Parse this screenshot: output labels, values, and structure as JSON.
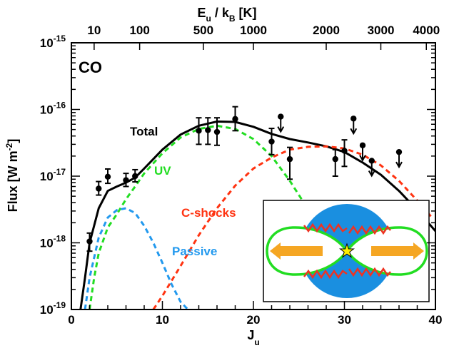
{
  "chart_data": {
    "type": "line",
    "panel_label": "CO",
    "xlabel": "J",
    "xlabel_sub": "u",
    "x_ticks": [
      "0",
      "10",
      "20",
      "30",
      "40"
    ],
    "xlim": [
      0,
      40
    ],
    "ylabel_main": "Flux [W m",
    "ylabel_sup": "-2",
    "ylabel_end": "]",
    "y_log": true,
    "ylim": [
      1e-19,
      1e-15
    ],
    "y_ticks": [
      {
        "value": 1e-19,
        "base": "10",
        "exp": "-19"
      },
      {
        "value": 1e-18,
        "base": "10",
        "exp": "-18"
      },
      {
        "value": 1e-17,
        "base": "10",
        "exp": "-17"
      },
      {
        "value": 1e-16,
        "base": "10",
        "exp": "-16"
      },
      {
        "value": 1e-15,
        "base": "10",
        "exp": "-15"
      }
    ],
    "top_axis": {
      "label_E": "E",
      "label_E_sub": "u",
      "label_mid": " / k",
      "label_k_sub": "B",
      "label_end": " [K]",
      "ticks": [
        {
          "label": "10",
          "J": 2.5
        },
        {
          "label": "100",
          "J": 7.5
        },
        {
          "label": "500",
          "J": 14.5
        },
        {
          "label": "1000",
          "J": 20
        },
        {
          "label": "2000",
          "J": 28
        },
        {
          "label": "3000",
          "J": 34
        },
        {
          "label": "4000",
          "J": 39
        }
      ]
    },
    "series": [
      {
        "name": "Total",
        "color": "#000000",
        "dashed": false,
        "points": [
          [
            1,
            1e-19
          ],
          [
            1.5,
            3e-19
          ],
          [
            2,
            1e-18
          ],
          [
            3,
            3.3e-18
          ],
          [
            4,
            6e-18
          ],
          [
            5,
            7e-18
          ],
          [
            6,
            8e-18
          ],
          [
            7,
            9.5e-18
          ],
          [
            8,
            1.3e-17
          ],
          [
            10,
            2.5e-17
          ],
          [
            12,
            4.2e-17
          ],
          [
            14,
            5.7e-17
          ],
          [
            16,
            6.6e-17
          ],
          [
            18,
            6.5e-17
          ],
          [
            20,
            5.5e-17
          ],
          [
            22,
            4.3e-17
          ],
          [
            24,
            3.6e-17
          ],
          [
            26,
            3.2e-17
          ],
          [
            28,
            2.8e-17
          ],
          [
            30,
            2.3e-17
          ],
          [
            32,
            1.6e-17
          ],
          [
            34,
            1.05e-17
          ],
          [
            36,
            6e-18
          ],
          [
            38,
            3.1e-18
          ],
          [
            40,
            1.5e-18
          ]
        ]
      },
      {
        "name": "UV",
        "color": "#22dd22",
        "dashed": true,
        "points": [
          [
            2,
            1e-19
          ],
          [
            2.5,
            3e-19
          ],
          [
            3,
            7e-19
          ],
          [
            4,
            1.7e-18
          ],
          [
            5,
            2.7e-18
          ],
          [
            6,
            4.5e-18
          ],
          [
            7,
            7e-18
          ],
          [
            8,
            1.1e-17
          ],
          [
            10,
            2.2e-17
          ],
          [
            12,
            3.8e-17
          ],
          [
            14,
            5.1e-17
          ],
          [
            16,
            5.7e-17
          ],
          [
            18,
            5.1e-17
          ],
          [
            20,
            3.6e-17
          ],
          [
            22,
            2e-17
          ],
          [
            24,
            8.5e-18
          ],
          [
            26,
            3.2e-18
          ],
          [
            27,
            1.8e-18
          ]
        ]
      },
      {
        "name": "C-shocks",
        "color": "#ff3311",
        "dashed": true,
        "points": [
          [
            9,
            1e-19
          ],
          [
            10,
            1.6e-19
          ],
          [
            12,
            4.5e-19
          ],
          [
            14,
            1.3e-18
          ],
          [
            16,
            3.3e-18
          ],
          [
            18,
            7.2e-18
          ],
          [
            20,
            1.3e-17
          ],
          [
            22,
            1.9e-17
          ],
          [
            24,
            2.5e-17
          ],
          [
            26,
            2.75e-17
          ],
          [
            28,
            2.8e-17
          ],
          [
            30,
            2.6e-17
          ],
          [
            32,
            2.1e-17
          ],
          [
            34,
            1.45e-17
          ],
          [
            36,
            8.5e-18
          ],
          [
            38,
            4.3e-18
          ],
          [
            39.5,
            2.5e-18
          ]
        ]
      },
      {
        "name": "Passive",
        "color": "#2299ee",
        "dashed": true,
        "points": [
          [
            1.5,
            1e-19
          ],
          [
            2,
            3e-19
          ],
          [
            3,
            1.2e-18
          ],
          [
            4,
            2.4e-18
          ],
          [
            5,
            3.1e-18
          ],
          [
            6,
            3.3e-18
          ],
          [
            7,
            2.8e-18
          ],
          [
            8,
            1.8e-18
          ],
          [
            9,
            1e-18
          ],
          [
            10,
            5e-19
          ],
          [
            11,
            2.4e-19
          ],
          [
            12,
            1.3e-19
          ],
          [
            12.8,
            1e-19
          ]
        ]
      }
    ],
    "observations": [
      {
        "x": 2,
        "y": 1.05e-18,
        "lo": 7.5e-19,
        "hi": 1.4e-18
      },
      {
        "x": 3,
        "y": 6.5e-18,
        "lo": 5.2e-18,
        "hi": 8.3e-18
      },
      {
        "x": 4,
        "y": 9.8e-18,
        "lo": 7.8e-18,
        "hi": 1.28e-17
      },
      {
        "x": 6,
        "y": 8.7e-18,
        "lo": 7e-18,
        "hi": 1.1e-17
      },
      {
        "x": 7,
        "y": 1e-17,
        "lo": 8.2e-18,
        "hi": 1.25e-17
      },
      {
        "x": 14,
        "y": 4.8e-17,
        "lo": 3e-17,
        "hi": 7.5e-17
      },
      {
        "x": 15,
        "y": 4.9e-17,
        "lo": 3e-17,
        "hi": 7.5e-17
      },
      {
        "x": 16,
        "y": 4.6e-17,
        "lo": 2.9e-17,
        "hi": 7.5e-17
      },
      {
        "x": 18,
        "y": 7.2e-17,
        "lo": 4.8e-17,
        "hi": 1.1e-16
      },
      {
        "x": 22,
        "y": 3.3e-17,
        "lo": 2.1e-17,
        "hi": 5.2e-17
      },
      {
        "x": 24,
        "y": 1.8e-17,
        "lo": 9e-18,
        "hi": 2.7e-17
      },
      {
        "x": 29,
        "y": 1.8e-17,
        "lo": 1e-17,
        "hi": 2.5e-17
      },
      {
        "x": 30,
        "y": 2.4e-17,
        "lo": 1.4e-17,
        "hi": 3.5e-17
      }
    ],
    "upper_limits": [
      {
        "x": 23,
        "y": 7.8e-17
      },
      {
        "x": 31,
        "y": 7.3e-17
      },
      {
        "x": 32,
        "y": 2.9e-17
      },
      {
        "x": 33,
        "y": 1.7e-17
      },
      {
        "x": 36,
        "y": 2.3e-17
      }
    ],
    "inset": {
      "description_colors": {
        "disk": "#1a8fe0",
        "wind": "#22dd22",
        "shocks": "#ee3322",
        "jet": "#f5a623",
        "star": "#ffee00"
      }
    }
  }
}
